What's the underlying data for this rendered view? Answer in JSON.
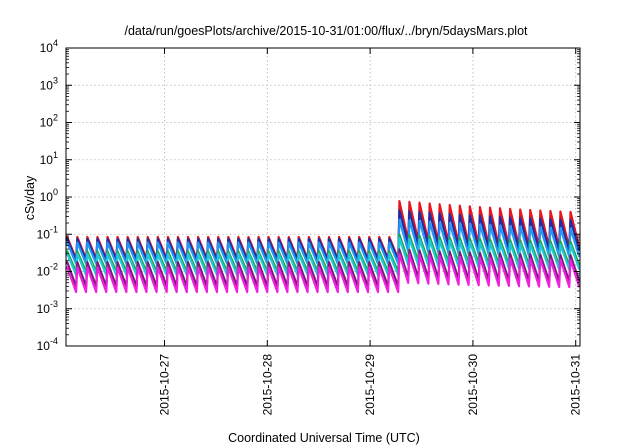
{
  "chart_data": {
    "type": "line",
    "title": "/data/run/goesPlots/archive/2015-10-31/01:00/flux/../bryn/5daysMars.plot",
    "xlabel": "Coordinated Universal Time (UTC)",
    "ylabel": "cSv/day",
    "yscale": "log",
    "ylim": [
      0.0001,
      10000
    ],
    "xlim": [
      "2015-10-26 01:00",
      "2015-10-31 01:00"
    ],
    "x_ticks": [
      "2015-10-27",
      "2015-10-28",
      "2015-10-29",
      "2015-10-30",
      "2015-10-31"
    ],
    "y_ticks": [
      {
        "base": "10",
        "exp": "-4",
        "value": 0.0001
      },
      {
        "base": "10",
        "exp": "-3",
        "value": 0.001
      },
      {
        "base": "10",
        "exp": "-2",
        "value": 0.01
      },
      {
        "base": "10",
        "exp": "-1",
        "value": 0.1
      },
      {
        "base": "10",
        "exp": "0",
        "value": 1
      },
      {
        "base": "10",
        "exp": "1",
        "value": 10
      },
      {
        "base": "10",
        "exp": "2",
        "value": 100
      },
      {
        "base": "10",
        "exp": "3",
        "value": 1000
      },
      {
        "base": "10",
        "exp": "4",
        "value": 10000
      }
    ],
    "grid": true,
    "legend": "none",
    "series": [
      {
        "color": "#e8141e",
        "quiet_peak": 0.085,
        "quiet_trough": 0.022,
        "active_peak": 0.8,
        "active_trough": 0.07
      },
      {
        "color": "#1b2fa8",
        "quiet_peak": 0.075,
        "quiet_trough": 0.02,
        "active_peak": 0.45,
        "active_trough": 0.055
      },
      {
        "color": "#2196f3",
        "quiet_peak": 0.06,
        "quiet_trough": 0.016,
        "active_peak": 0.25,
        "active_trough": 0.035
      },
      {
        "color": "#1fa84a",
        "quiet_peak": 0.035,
        "quiet_trough": 0.01,
        "active_peak": 0.1,
        "active_trough": 0.02
      },
      {
        "color": "#26c6da",
        "quiet_peak": 0.03,
        "quiet_trough": 0.008,
        "active_peak": 0.08,
        "active_trough": 0.015
      },
      {
        "color": "#7a1a7a",
        "quiet_peak": 0.018,
        "quiet_trough": 0.004,
        "active_peak": 0.04,
        "active_trough": 0.007
      },
      {
        "color": "#ee22dd",
        "quiet_peak": 0.013,
        "quiet_trough": 0.0028,
        "active_peak": 0.03,
        "active_trough": 0.005
      }
    ]
  }
}
